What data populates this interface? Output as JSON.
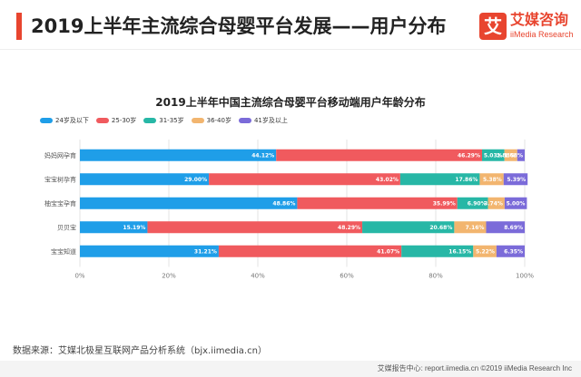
{
  "header": {
    "title": "2019上半年主流综合母婴平台发展——用户分布",
    "logo_badge": "艾",
    "logo_cn": "艾媒咨询",
    "logo_en": "iiMedia Research"
  },
  "colors": {
    "accent": "#e8452f",
    "series": [
      "#1f9ee8",
      "#f05a5e",
      "#27b7a6",
      "#f2b56f",
      "#7b6bd9"
    ]
  },
  "chart_data": {
    "type": "bar",
    "orientation": "horizontal",
    "stacked": true,
    "title": "2019上半年中国主流综合母婴平台移动端用户年龄分布",
    "categories": [
      "妈妈网孕育",
      "宝宝树孕育",
      "柚宝宝孕育",
      "贝贝宝",
      "宝宝知道"
    ],
    "series": [
      {
        "name": "24岁及以下",
        "values": [
          44.12,
          29.0,
          48.86,
          15.19,
          31.21
        ],
        "labels": [
          "44.12%",
          "29.00%",
          "48.86%",
          "15.19%",
          "31.21%"
        ]
      },
      {
        "name": "25-30岁",
        "values": [
          46.29,
          43.02,
          35.99,
          48.29,
          41.07
        ],
        "labels": [
          "46.29%",
          "43.02%",
          "35.99%",
          "48.29%",
          "41.07%"
        ]
      },
      {
        "name": "31-35岁",
        "values": [
          5.03,
          17.86,
          6.9,
          20.68,
          16.15
        ],
        "labels": [
          "5.03%",
          "17.86%",
          "6.90%",
          "20.68%",
          "16.15%"
        ]
      },
      {
        "name": "36-40岁",
        "values": [
          2.88,
          5.38,
          3.74,
          7.16,
          5.22
        ],
        "labels": [
          "2.88%",
          "5.38%",
          "3.74%",
          "7.16%",
          "5.22%"
        ]
      },
      {
        "name": "41岁及以上",
        "values": [
          1.68,
          5.39,
          5.0,
          8.69,
          6.35
        ],
        "labels": [
          "1.68%",
          "5.39%",
          "5.00%",
          "8.69%",
          "6.35%"
        ]
      }
    ],
    "xlim": [
      0,
      100
    ],
    "xticks": [
      "0%",
      "20%",
      "40%",
      "60%",
      "80%",
      "100%"
    ],
    "grid": true,
    "legend_position": "top-left"
  },
  "source": "数据来源：艾媒北极星互联网产品分析系统（bjx.iimedia.cn）",
  "footer": "艾媒报告中心: report.iimedia.cn   ©2019  iiMedia Research  Inc"
}
